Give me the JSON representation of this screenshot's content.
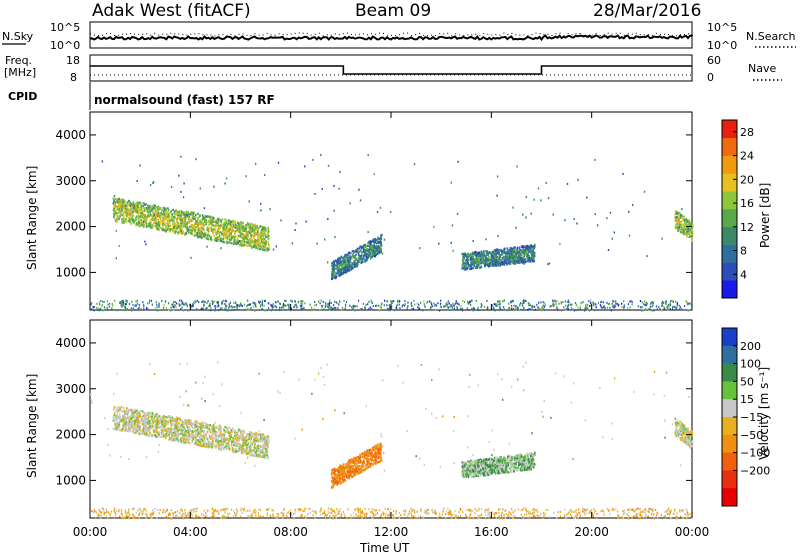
{
  "header": {
    "station": "Adak West (fitACF)",
    "beam": "Beam 09",
    "date": "28/Mar/2016"
  },
  "strip_panels": {
    "nsky": {
      "label": "N.Sky",
      "right_label": "N.Search",
      "left_ticks": [
        "10^5",
        "10^0"
      ],
      "right_ticks": [
        "10^5",
        "10^0"
      ]
    },
    "freq": {
      "label_line1": "Freq.",
      "label_line2": "[MHz]",
      "right_label": "Nave",
      "left_ticks": [
        "18",
        "8"
      ],
      "right_ticks": [
        "60",
        "0"
      ]
    },
    "cpid": {
      "label": "CPID",
      "value": "normalsound (fast) 157 RF"
    }
  },
  "colors": {
    "power_scale": [
      "#1a1ae6",
      "#2a4fb8",
      "#2f6fa0",
      "#3a8a6a",
      "#59a84a",
      "#8ec63a",
      "#e8c020",
      "#f09a10",
      "#f06a10",
      "#e82010"
    ],
    "velocity_scale": [
      "#1a3fc8",
      "#2f6fa0",
      "#3a8a4a",
      "#66c23a",
      "#c8c8c8",
      "#e8b020",
      "#f09010",
      "#f06010",
      "#e83010",
      "#e80000"
    ],
    "ground": "#c8c8c8"
  },
  "chart_data": [
    {
      "type": "heatmap",
      "panel": "power",
      "ylabel": "Slant Range [km]",
      "x_ticks": [
        "00:00",
        "04:00",
        "08:00",
        "12:00",
        "16:00",
        "20:00",
        "00:00"
      ],
      "y_ticks": [
        1000,
        2000,
        3000,
        4000
      ],
      "ylim": [
        180,
        4500
      ],
      "xlim_hours": [
        0,
        24
      ],
      "colorbar": {
        "label": "Power [dB]",
        "ticks": [
          4,
          8,
          12,
          16,
          20,
          24,
          28
        ],
        "range": [
          0,
          30
        ]
      },
      "echo_regions": [
        {
          "t_start": 0.9,
          "t_end": 7.1,
          "range_start": 2400,
          "range_end": 1750,
          "width_km": 260,
          "value": 14
        },
        {
          "t_start": 9.6,
          "t_end": 11.6,
          "range_start": 1050,
          "range_end": 1650,
          "width_km": 200,
          "value": 7
        },
        {
          "t_start": 14.8,
          "t_end": 17.7,
          "range_start": 1250,
          "range_end": 1450,
          "width_km": 180,
          "value": 7
        },
        {
          "t_start": 23.3,
          "t_end": 24.0,
          "range_start": 2200,
          "range_end": 1900,
          "width_km": 200,
          "value": 14
        }
      ]
    },
    {
      "type": "heatmap",
      "panel": "velocity",
      "ylabel": "Slant Range [km]",
      "xlabel": "Time UT",
      "x_ticks": [
        "00:00",
        "04:00",
        "08:00",
        "12:00",
        "16:00",
        "20:00",
        "00:00"
      ],
      "y_ticks": [
        1000,
        2000,
        3000,
        4000
      ],
      "ylim": [
        180,
        4500
      ],
      "xlim_hours": [
        0,
        24
      ],
      "colorbar": {
        "label": "Velocity [m s⁻¹]",
        "ticks": [
          200,
          100,
          50,
          15,
          -15,
          -50,
          -100,
          -200
        ]
      },
      "echo_regions": [
        {
          "t_start": 0.9,
          "t_end": 7.1,
          "range_start": 2400,
          "range_end": 1750,
          "width_km": 260,
          "value": 0
        },
        {
          "t_start": 9.6,
          "t_end": 11.6,
          "range_start": 1050,
          "range_end": 1650,
          "width_km": 200,
          "value": -60
        },
        {
          "t_start": 14.8,
          "t_end": 17.7,
          "range_start": 1250,
          "range_end": 1450,
          "width_km": 180,
          "value": 20
        },
        {
          "t_start": 23.3,
          "t_end": 24.0,
          "range_start": 2200,
          "range_end": 1900,
          "width_km": 200,
          "value": 0
        }
      ]
    }
  ]
}
